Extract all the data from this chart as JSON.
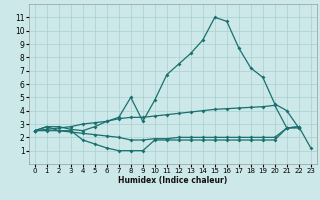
{
  "xlabel": "Humidex (Indice chaleur)",
  "xlim": [
    -0.5,
    23.5
  ],
  "ylim": [
    0,
    12
  ],
  "xticks": [
    0,
    1,
    2,
    3,
    4,
    5,
    6,
    7,
    8,
    9,
    10,
    11,
    12,
    13,
    14,
    15,
    16,
    17,
    18,
    19,
    20,
    21,
    22,
    23
  ],
  "yticks": [
    1,
    2,
    3,
    4,
    5,
    6,
    7,
    8,
    9,
    10,
    11
  ],
  "bg_color": "#cce8e8",
  "grid_color": "#aacfcf",
  "line_color": "#1a7070",
  "series": {
    "max": {
      "x": [
        0,
        1,
        2,
        3,
        4,
        5,
        6,
        7,
        8,
        9,
        10,
        11,
        12,
        13,
        14,
        15,
        16,
        17,
        18,
        19,
        20,
        21,
        22
      ],
      "y": [
        2.5,
        2.8,
        2.8,
        2.6,
        2.5,
        2.8,
        3.2,
        3.5,
        5.0,
        3.2,
        4.8,
        6.7,
        7.5,
        8.3,
        9.3,
        11.0,
        10.7,
        8.7,
        7.2,
        6.5,
        4.5,
        4.0,
        2.7
      ]
    },
    "mean_high": {
      "x": [
        0,
        1,
        2,
        3,
        4,
        5,
        6,
        7,
        8,
        9,
        10,
        11,
        12,
        13,
        14,
        15,
        16,
        17,
        18,
        19,
        20,
        21,
        22
      ],
      "y": [
        2.5,
        2.6,
        2.7,
        2.8,
        3.0,
        3.1,
        3.2,
        3.4,
        3.5,
        3.5,
        3.6,
        3.7,
        3.8,
        3.9,
        4.0,
        4.1,
        4.15,
        4.2,
        4.25,
        4.3,
        4.4,
        2.7,
        2.8
      ]
    },
    "mean_low": {
      "x": [
        0,
        1,
        2,
        3,
        4,
        5,
        6,
        7,
        8,
        9,
        10,
        11,
        12,
        13,
        14,
        15,
        16,
        17,
        18,
        19,
        20,
        21,
        22
      ],
      "y": [
        2.5,
        2.5,
        2.5,
        2.4,
        2.3,
        2.2,
        2.1,
        2.0,
        1.8,
        1.8,
        1.9,
        1.9,
        2.0,
        2.0,
        2.0,
        2.0,
        2.0,
        2.0,
        2.0,
        2.0,
        2.0,
        2.7,
        2.7
      ]
    },
    "min": {
      "x": [
        0,
        1,
        2,
        3,
        4,
        5,
        6,
        7,
        8,
        9,
        10,
        11,
        12,
        13,
        14,
        15,
        16,
        17,
        18,
        19,
        20,
        21,
        22,
        23
      ],
      "y": [
        2.5,
        2.8,
        2.5,
        2.5,
        1.8,
        1.5,
        1.2,
        1.0,
        1.0,
        1.0,
        1.8,
        1.8,
        1.8,
        1.8,
        1.8,
        1.8,
        1.8,
        1.8,
        1.8,
        1.8,
        1.8,
        2.7,
        2.8,
        1.2
      ]
    }
  }
}
